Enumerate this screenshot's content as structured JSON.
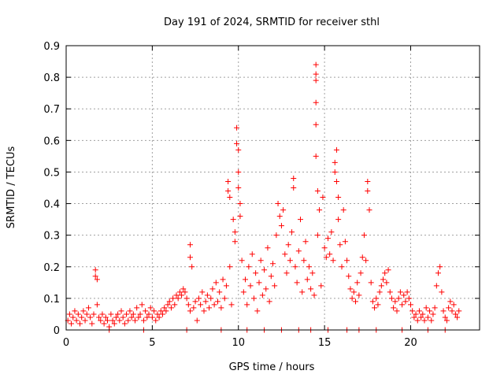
{
  "chart_data": {
    "type": "scatter",
    "title": "Day 191 of 2024, SRMTID for receiver sthl",
    "xlabel": "GPS time / hours",
    "ylabel": "SRMTID / TECUs",
    "xlim": [
      0,
      24
    ],
    "ylim": [
      0,
      0.9
    ],
    "grid": true,
    "x_ticks": [
      0,
      5,
      10,
      15,
      20
    ],
    "x_tick_labels": [
      "0",
      "5",
      "10",
      "15",
      "20"
    ],
    "y_ticks": [
      0,
      0.1,
      0.2,
      0.3,
      0.4,
      0.5,
      0.6,
      0.7,
      0.8,
      0.9
    ],
    "y_tick_labels": [
      "0",
      "0.1",
      "0.2",
      "0.3",
      "0.4",
      "0.5",
      "0.6",
      "0.7",
      "0.8",
      "0.9"
    ],
    "marker": "+",
    "series": [
      {
        "name": "SRMTID",
        "color": "#ff0000",
        "points": [
          [
            0.1,
            0.03
          ],
          [
            0.2,
            0.05
          ],
          [
            0.3,
            0.02
          ],
          [
            0.4,
            0.04
          ],
          [
            0.5,
            0.06
          ],
          [
            0.6,
            0.03
          ],
          [
            0.7,
            0.05
          ],
          [
            0.8,
            0.02
          ],
          [
            0.9,
            0.04
          ],
          [
            1.0,
            0.06
          ],
          [
            1.1,
            0.03
          ],
          [
            1.2,
            0.05
          ],
          [
            1.3,
            0.07
          ],
          [
            1.4,
            0.04
          ],
          [
            1.5,
            0.02
          ],
          [
            1.6,
            0.05
          ],
          [
            1.7,
            0.19
          ],
          [
            1.7,
            0.17
          ],
          [
            1.8,
            0.16
          ],
          [
            1.8,
            0.08
          ],
          [
            1.9,
            0.04
          ],
          [
            2.0,
            0.03
          ],
          [
            2.1,
            0.05
          ],
          [
            2.2,
            0.02
          ],
          [
            2.3,
            0.04
          ],
          [
            2.4,
            0.03
          ],
          [
            2.5,
            0.01
          ],
          [
            2.6,
            0.05
          ],
          [
            2.7,
            0.03
          ],
          [
            2.8,
            0.02
          ],
          [
            2.9,
            0.04
          ],
          [
            3.0,
            0.05
          ],
          [
            3.1,
            0.03
          ],
          [
            3.2,
            0.06
          ],
          [
            3.3,
            0.04
          ],
          [
            3.4,
            0.02
          ],
          [
            3.5,
            0.05
          ],
          [
            3.6,
            0.03
          ],
          [
            3.7,
            0.06
          ],
          [
            3.8,
            0.04
          ],
          [
            3.9,
            0.05
          ],
          [
            4.0,
            0.03
          ],
          [
            4.1,
            0.07
          ],
          [
            4.2,
            0.04
          ],
          [
            4.3,
            0.05
          ],
          [
            4.4,
            0.08
          ],
          [
            4.5,
            0.03
          ],
          [
            4.6,
            0.06
          ],
          [
            4.7,
            0.04
          ],
          [
            4.8,
            0.05
          ],
          [
            4.9,
            0.07
          ],
          [
            5.0,
            0.04
          ],
          [
            5.1,
            0.06
          ],
          [
            5.2,
            0.03
          ],
          [
            5.3,
            0.05
          ],
          [
            5.4,
            0.04
          ],
          [
            5.5,
            0.06
          ],
          [
            5.6,
            0.05
          ],
          [
            5.7,
            0.07
          ],
          [
            5.8,
            0.06
          ],
          [
            5.9,
            0.08
          ],
          [
            6.0,
            0.09
          ],
          [
            6.1,
            0.07
          ],
          [
            6.2,
            0.1
          ],
          [
            6.3,
            0.08
          ],
          [
            6.4,
            0.11
          ],
          [
            6.5,
            0.1
          ],
          [
            6.6,
            0.12
          ],
          [
            6.7,
            0.11
          ],
          [
            6.8,
            0.13
          ],
          [
            6.9,
            0.12
          ],
          [
            7.0,
            0.1
          ],
          [
            7.1,
            0.08
          ],
          [
            7.2,
            0.06
          ],
          [
            7.2,
            0.27
          ],
          [
            7.2,
            0.23
          ],
          [
            7.3,
            0.2
          ],
          [
            7.4,
            0.07
          ],
          [
            7.5,
            0.09
          ],
          [
            7.6,
            0.03
          ],
          [
            7.7,
            0.1
          ],
          [
            7.8,
            0.08
          ],
          [
            7.9,
            0.12
          ],
          [
            8.0,
            0.06
          ],
          [
            8.1,
            0.09
          ],
          [
            8.2,
            0.11
          ],
          [
            8.3,
            0.07
          ],
          [
            8.4,
            0.1
          ],
          [
            8.5,
            0.13
          ],
          [
            8.6,
            0.08
          ],
          [
            8.7,
            0.15
          ],
          [
            8.8,
            0.09
          ],
          [
            8.9,
            0.12
          ],
          [
            9.0,
            0.07
          ],
          [
            9.1,
            0.16
          ],
          [
            9.2,
            0.1
          ],
          [
            9.3,
            0.14
          ],
          [
            9.4,
            0.47
          ],
          [
            9.4,
            0.44
          ],
          [
            9.5,
            0.42
          ],
          [
            9.5,
            0.2
          ],
          [
            9.6,
            0.08
          ],
          [
            9.7,
            0.35
          ],
          [
            9.8,
            0.31
          ],
          [
            9.8,
            0.28
          ],
          [
            9.9,
            0.64
          ],
          [
            9.9,
            0.59
          ],
          [
            10.0,
            0.57
          ],
          [
            10.0,
            0.5
          ],
          [
            10.0,
            0.45
          ],
          [
            10.1,
            0.4
          ],
          [
            10.1,
            0.36
          ],
          [
            10.2,
            0.22
          ],
          [
            10.3,
            0.12
          ],
          [
            10.4,
            0.16
          ],
          [
            10.5,
            0.08
          ],
          [
            10.6,
            0.2
          ],
          [
            10.7,
            0.14
          ],
          [
            10.8,
            0.24
          ],
          [
            10.9,
            0.1
          ],
          [
            11.0,
            0.18
          ],
          [
            11.1,
            0.06
          ],
          [
            11.2,
            0.15
          ],
          [
            11.3,
            0.22
          ],
          [
            11.4,
            0.11
          ],
          [
            11.5,
            0.19
          ],
          [
            11.6,
            0.13
          ],
          [
            11.7,
            0.26
          ],
          [
            11.8,
            0.09
          ],
          [
            11.9,
            0.17
          ],
          [
            12.0,
            0.21
          ],
          [
            12.1,
            0.14
          ],
          [
            12.2,
            0.3
          ],
          [
            12.3,
            0.4
          ],
          [
            12.4,
            0.36
          ],
          [
            12.5,
            0.33
          ],
          [
            12.6,
            0.38
          ],
          [
            12.7,
            0.24
          ],
          [
            12.8,
            0.18
          ],
          [
            12.9,
            0.27
          ],
          [
            13.0,
            0.22
          ],
          [
            13.1,
            0.31
          ],
          [
            13.2,
            0.48
          ],
          [
            13.2,
            0.45
          ],
          [
            13.3,
            0.2
          ],
          [
            13.4,
            0.15
          ],
          [
            13.5,
            0.25
          ],
          [
            13.6,
            0.35
          ],
          [
            13.7,
            0.12
          ],
          [
            13.8,
            0.22
          ],
          [
            13.9,
            0.28
          ],
          [
            14.0,
            0.16
          ],
          [
            14.1,
            0.2
          ],
          [
            14.2,
            0.13
          ],
          [
            14.3,
            0.18
          ],
          [
            14.4,
            0.11
          ],
          [
            14.5,
            0.84
          ],
          [
            14.5,
            0.81
          ],
          [
            14.5,
            0.79
          ],
          [
            14.5,
            0.72
          ],
          [
            14.5,
            0.65
          ],
          [
            14.5,
            0.55
          ],
          [
            14.6,
            0.44
          ],
          [
            14.6,
            0.3
          ],
          [
            14.7,
            0.38
          ],
          [
            14.8,
            0.14
          ],
          [
            14.9,
            0.42
          ],
          [
            15.0,
            0.26
          ],
          [
            15.1,
            0.23
          ],
          [
            15.2,
            0.29
          ],
          [
            15.3,
            0.24
          ],
          [
            15.4,
            0.31
          ],
          [
            15.5,
            0.22
          ],
          [
            15.6,
            0.53
          ],
          [
            15.6,
            0.5
          ],
          [
            15.7,
            0.57
          ],
          [
            15.7,
            0.47
          ],
          [
            15.8,
            0.42
          ],
          [
            15.8,
            0.35
          ],
          [
            15.9,
            0.27
          ],
          [
            16.0,
            0.2
          ],
          [
            16.1,
            0.38
          ],
          [
            16.2,
            0.28
          ],
          [
            16.3,
            0.22
          ],
          [
            16.4,
            0.17
          ],
          [
            16.5,
            0.13
          ],
          [
            16.6,
            0.1
          ],
          [
            16.7,
            0.12
          ],
          [
            16.8,
            0.09
          ],
          [
            16.9,
            0.15
          ],
          [
            17.0,
            0.11
          ],
          [
            17.1,
            0.18
          ],
          [
            17.2,
            0.23
          ],
          [
            17.3,
            0.3
          ],
          [
            17.4,
            0.22
          ],
          [
            17.5,
            0.47
          ],
          [
            17.5,
            0.44
          ],
          [
            17.6,
            0.38
          ],
          [
            17.7,
            0.15
          ],
          [
            17.8,
            0.09
          ],
          [
            17.9,
            0.07
          ],
          [
            18.0,
            0.1
          ],
          [
            18.1,
            0.08
          ],
          [
            18.2,
            0.12
          ],
          [
            18.3,
            0.14
          ],
          [
            18.4,
            0.16
          ],
          [
            18.5,
            0.18
          ],
          [
            18.6,
            0.15
          ],
          [
            18.7,
            0.19
          ],
          [
            18.8,
            0.12
          ],
          [
            18.9,
            0.1
          ],
          [
            19.0,
            0.07
          ],
          [
            19.1,
            0.09
          ],
          [
            19.2,
            0.06
          ],
          [
            19.3,
            0.1
          ],
          [
            19.4,
            0.12
          ],
          [
            19.5,
            0.08
          ],
          [
            19.6,
            0.11
          ],
          [
            19.7,
            0.09
          ],
          [
            19.8,
            0.12
          ],
          [
            19.9,
            0.1
          ],
          [
            20.0,
            0.08
          ],
          [
            20.1,
            0.06
          ],
          [
            20.2,
            0.04
          ],
          [
            20.3,
            0.05
          ],
          [
            20.4,
            0.03
          ],
          [
            20.5,
            0.06
          ],
          [
            20.6,
            0.04
          ],
          [
            20.7,
            0.05
          ],
          [
            20.8,
            0.03
          ],
          [
            20.9,
            0.07
          ],
          [
            21.0,
            0.04
          ],
          [
            21.1,
            0.06
          ],
          [
            21.2,
            0.03
          ],
          [
            21.3,
            0.05
          ],
          [
            21.4,
            0.07
          ],
          [
            21.5,
            0.14
          ],
          [
            21.6,
            0.18
          ],
          [
            21.7,
            0.2
          ],
          [
            21.8,
            0.12
          ],
          [
            21.9,
            0.06
          ],
          [
            22.0,
            0.04
          ],
          [
            22.1,
            0.03
          ],
          [
            22.2,
            0.07
          ],
          [
            22.3,
            0.09
          ],
          [
            22.4,
            0.06
          ],
          [
            22.5,
            0.08
          ],
          [
            22.6,
            0.05
          ],
          [
            22.7,
            0.04
          ],
          [
            22.8,
            0.06
          ],
          [
            2.5,
            0.0
          ],
          [
            4.5,
            0.0
          ],
          [
            7.0,
            0.0
          ],
          [
            9.0,
            0.0
          ],
          [
            10.5,
            0.0
          ],
          [
            11.5,
            0.0
          ],
          [
            12.5,
            0.0
          ],
          [
            13.5,
            0.0
          ],
          [
            14.2,
            0.0
          ],
          [
            15.2,
            0.0
          ],
          [
            16.3,
            0.0
          ],
          [
            17.0,
            0.0
          ],
          [
            18.0,
            0.0
          ],
          [
            19.5,
            0.0
          ],
          [
            21.0,
            0.0
          ],
          [
            22.0,
            0.0
          ]
        ]
      }
    ]
  }
}
